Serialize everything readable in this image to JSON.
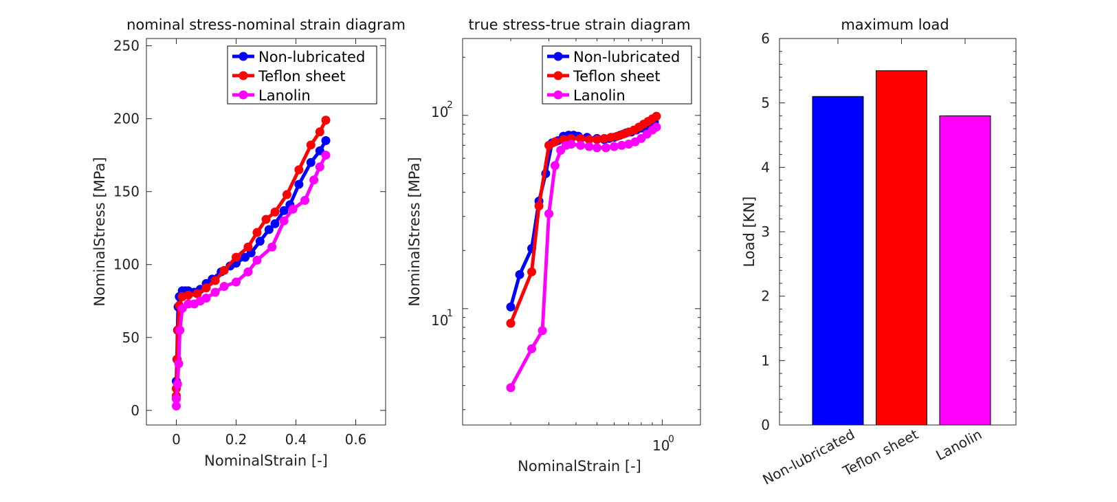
{
  "chart_data": [
    {
      "type": "line",
      "title": "nominal stress-nominal strain diagram",
      "xlabel": "NominalStrain [-]",
      "ylabel": "NominalStress [MPa]",
      "xlim": [
        -0.1,
        0.7
      ],
      "ylim": [
        -10,
        255
      ],
      "xticks": [
        0,
        0.2,
        0.4,
        0.6
      ],
      "xtick_labels": [
        "0",
        "0.2",
        "0.4",
        "0.6"
      ],
      "yticks": [
        0,
        50,
        100,
        150,
        200,
        250
      ],
      "ytick_labels": [
        "0",
        "50",
        "100",
        "150",
        "200",
        "250"
      ],
      "xscale": "linear",
      "yscale": "linear",
      "grid": false,
      "legend_position": "top-right",
      "series": [
        {
          "name": "Non-lubricated",
          "color": "#0000ff",
          "x": [
            0.0,
            0.0,
            0.002,
            0.004,
            0.006,
            0.01,
            0.02,
            0.03,
            0.04,
            0.06,
            0.08,
            0.1,
            0.12,
            0.15,
            0.18,
            0.2,
            0.23,
            0.25,
            0.28,
            0.31,
            0.33,
            0.36,
            0.38,
            0.41,
            0.45,
            0.48,
            0.5
          ],
          "y": [
            8,
            20,
            35,
            55,
            71,
            78,
            82,
            82,
            82,
            81,
            83,
            87,
            90,
            95,
            99,
            101,
            105,
            108,
            116,
            124,
            128,
            137,
            141,
            155,
            170,
            178,
            185
          ]
        },
        {
          "name": "Teflon sheet",
          "color": "#ff0000",
          "x": [
            0.0,
            0.0,
            0.003,
            0.005,
            0.01,
            0.02,
            0.04,
            0.07,
            0.1,
            0.13,
            0.16,
            0.2,
            0.24,
            0.27,
            0.3,
            0.33,
            0.37,
            0.41,
            0.45,
            0.48,
            0.5
          ],
          "y": [
            10,
            15,
            35,
            55,
            72,
            78,
            79,
            80,
            84,
            89,
            96,
            105,
            112,
            122,
            131,
            136,
            148,
            165,
            182,
            191,
            199
          ]
        },
        {
          "name": "Lanolin",
          "color": "#ff00ff",
          "x": [
            0.0,
            0.0,
            0.004,
            0.008,
            0.012,
            0.02,
            0.04,
            0.06,
            0.08,
            0.1,
            0.13,
            0.16,
            0.2,
            0.24,
            0.27,
            0.32,
            0.36,
            0.39,
            0.43,
            0.46,
            0.48,
            0.5
          ],
          "y": [
            3,
            8,
            18,
            32,
            55,
            70,
            73,
            73,
            75,
            77,
            81,
            85,
            88,
            95,
            103,
            112,
            130,
            138,
            144,
            158,
            167,
            175
          ]
        }
      ]
    },
    {
      "type": "line",
      "title": "true stress-true strain diagram",
      "xlabel": "NominalStrain [-]",
      "ylabel": "NominalStress [MPa]",
      "xlim": [
        0.12,
        1.5
      ],
      "ylim": [
        2.5,
        250
      ],
      "xticks": [
        1
      ],
      "xtick_labels": [
        "10",
        "0"
      ],
      "yticks": [
        10,
        100
      ],
      "ytick_labels": [
        "10",
        "1",
        "10",
        "2"
      ],
      "xscale": "log",
      "yscale": "log",
      "grid": false,
      "legend_position": "top-right",
      "series": [
        {
          "name": "Non-lubricated",
          "color": "#0000ff",
          "x": [
            0.2,
            0.22,
            0.25,
            0.27,
            0.29,
            0.31,
            0.33,
            0.35,
            0.37,
            0.39,
            0.41,
            0.45,
            0.5,
            0.54,
            0.57,
            0.6,
            0.64,
            0.68,
            0.72,
            0.76,
            0.8,
            0.84,
            0.88,
            0.92
          ],
          "y": [
            10.2,
            15,
            20.5,
            36,
            50,
            72,
            74,
            78,
            79,
            79,
            78,
            77,
            76,
            75,
            76,
            77,
            79,
            81,
            82,
            84,
            86,
            88,
            90,
            92
          ]
        },
        {
          "name": "Teflon sheet",
          "color": "#ff0000",
          "x": [
            0.2,
            0.25,
            0.27,
            0.3,
            0.32,
            0.35,
            0.38,
            0.42,
            0.46,
            0.5,
            0.54,
            0.58,
            0.62,
            0.66,
            0.7,
            0.74,
            0.78,
            0.82,
            0.86,
            0.9,
            0.94
          ],
          "y": [
            8.4,
            15.5,
            34,
            70,
            73,
            75,
            76,
            76,
            75,
            75,
            76,
            77,
            78,
            80,
            82,
            84,
            87,
            90,
            93,
            96,
            99
          ]
        },
        {
          "name": "Lanolin",
          "color": "#ff00ff",
          "x": [
            0.2,
            0.25,
            0.28,
            0.3,
            0.32,
            0.34,
            0.36,
            0.38,
            0.42,
            0.46,
            0.5,
            0.55,
            0.6,
            0.65,
            0.7,
            0.75,
            0.8,
            0.85,
            0.9,
            0.94
          ],
          "y": [
            3.9,
            6.2,
            7.7,
            31,
            55,
            66,
            70,
            71,
            70,
            69,
            68,
            68,
            69,
            70,
            71,
            73,
            76,
            80,
            84,
            87
          ]
        }
      ]
    },
    {
      "type": "bar",
      "title": "maximum load",
      "xlabel": "",
      "ylabel": "Load [KN]",
      "ylim": [
        0,
        6
      ],
      "yticks": [
        0,
        1,
        2,
        3,
        4,
        5,
        6
      ],
      "ytick_labels": [
        "0",
        "1",
        "2",
        "3",
        "4",
        "5",
        "6"
      ],
      "grid": false,
      "categories": [
        "Non-lubricated",
        "Teflon sheet",
        "Lanolin"
      ],
      "values": [
        5.1,
        5.5,
        4.8
      ],
      "colors": [
        "#0000ff",
        "#ff0000",
        "#ff00ff"
      ]
    }
  ]
}
